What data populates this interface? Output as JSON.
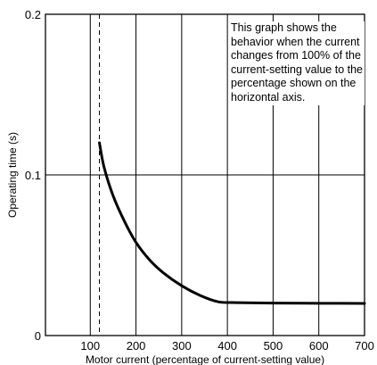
{
  "chart_data": {
    "type": "line",
    "xlabel": "Motor current (percentage of current-setting value)",
    "ylabel": "Operating time (s)",
    "xlim": [
      0,
      700
    ],
    "ylim": [
      0,
      0.2
    ],
    "x_ticks": [
      100,
      200,
      300,
      400,
      500,
      600,
      700
    ],
    "x_tick_labels": [
      "100",
      "200",
      "300",
      "400",
      "500",
      "600",
      "700"
    ],
    "y_ticks": [
      0,
      0.1,
      0.2
    ],
    "y_tick_labels": [
      "0",
      "0.1",
      "0.2"
    ],
    "vertical_grid": [
      100,
      200,
      300,
      400,
      500,
      600
    ],
    "horizontal_grid": [
      0.1
    ],
    "dashed_reference_x": 120,
    "grid": true,
    "legend": "none",
    "annotation": "This graph shows the behavior when the current changes from 100% of the current-setting value to the percentage shown on the horizontal axis.",
    "series": [
      {
        "x": [
          120,
          130,
          150,
          175,
          200,
          230,
          260,
          300,
          340,
          380,
          420,
          500,
          600,
          700
        ],
        "y": [
          0.12,
          0.105,
          0.087,
          0.071,
          0.058,
          0.047,
          0.039,
          0.031,
          0.025,
          0.021,
          0.0205,
          0.0202,
          0.0201,
          0.02
        ]
      }
    ]
  }
}
